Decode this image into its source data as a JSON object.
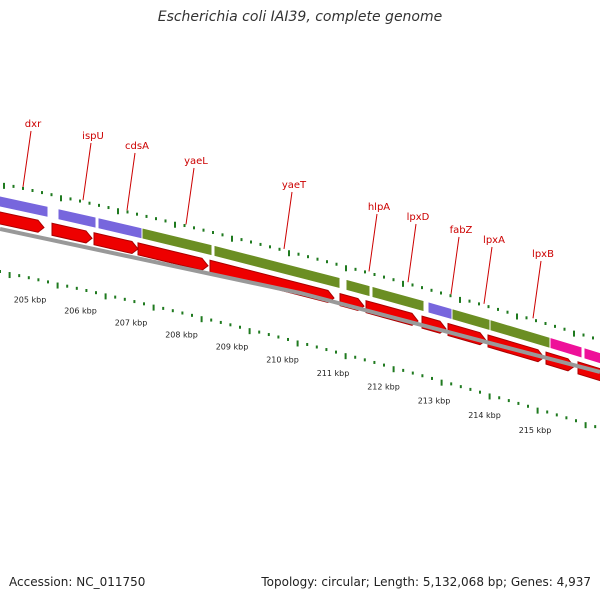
{
  "title": "Escherichia coli IAI39, complete genome",
  "footer": {
    "accession": "Accession: NC_011750",
    "stats": "Topology: circular; Length: 5,132,068 bp; Genes: 4,937"
  },
  "colors": {
    "gene_label": "#cc0000",
    "tick": "#1f7a1f",
    "cds_arrow": "#ee0000",
    "blue_segment": "#7766dd",
    "green_segment": "#6b8e23",
    "pink_segment": "#ee1199",
    "backbone": "#888888"
  },
  "genes": [
    {
      "name": "dxr",
      "track": "blue"
    },
    {
      "name": "ispU",
      "track": "blue"
    },
    {
      "name": "cdsA",
      "track": "blue"
    },
    {
      "name": "yaeL",
      "track": "green"
    },
    {
      "name": "yaeT",
      "track": "green"
    },
    {
      "name": "hlpA",
      "track": "green"
    },
    {
      "name": "lpxD",
      "track": "green"
    },
    {
      "name": "fabZ",
      "track": "blue"
    },
    {
      "name": "lpxA",
      "track": "green"
    },
    {
      "name": "lpxB",
      "track": "pink"
    }
  ],
  "kbp_labels": [
    "205 kbp",
    "206 kbp",
    "207 kbp",
    "208 kbp",
    "209 kbp",
    "210 kbp",
    "211 kbp",
    "212 kbp",
    "213 kbp",
    "214 kbp",
    "215 kbp"
  ]
}
